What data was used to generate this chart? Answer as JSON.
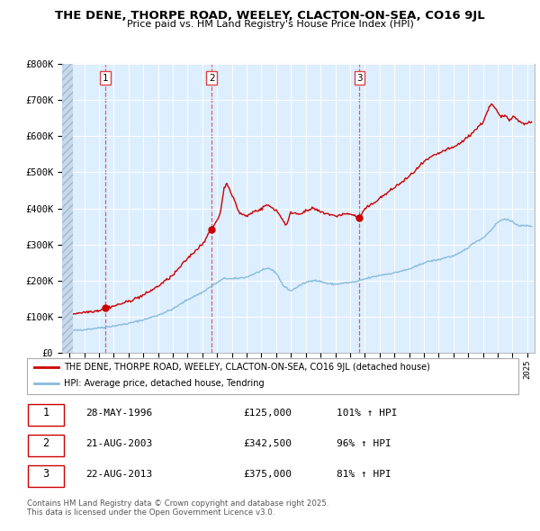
{
  "title": "THE DENE, THORPE ROAD, WEELEY, CLACTON-ON-SEA, CO16 9JL",
  "subtitle": "Price paid vs. HM Land Registry's House Price Index (HPI)",
  "bg_color": "#ddeeff",
  "hatch_bg": "#c8d8ea",
  "red_line_color": "#cc0000",
  "blue_line_color": "#88bbdd",
  "grid_color": "#ffffff",
  "vline1_color": "#dd4444",
  "vline2_color": "#dd4444",
  "vline3_color": "#dd4444",
  "sale_markers": [
    {
      "date_year": 1996.41,
      "price": 125000,
      "label": "1"
    },
    {
      "date_year": 2003.64,
      "price": 342500,
      "label": "2"
    },
    {
      "date_year": 2013.64,
      "price": 375000,
      "label": "3"
    }
  ],
  "legend_entries": [
    {
      "label": "THE DENE, THORPE ROAD, WEELEY, CLACTON-ON-SEA, CO16 9JL (detached house)",
      "color": "#cc0000"
    },
    {
      "label": "HPI: Average price, detached house, Tendring",
      "color": "#88bbdd"
    }
  ],
  "table_rows": [
    {
      "num": "1",
      "date": "28-MAY-1996",
      "price": "£125,000",
      "hpi": "101% ↑ HPI"
    },
    {
      "num": "2",
      "date": "21-AUG-2003",
      "price": "£342,500",
      "hpi": "96% ↑ HPI"
    },
    {
      "num": "3",
      "date": "22-AUG-2013",
      "price": "£375,000",
      "hpi": "81% ↑ HPI"
    }
  ],
  "footnote": "Contains HM Land Registry data © Crown copyright and database right 2025.\nThis data is licensed under the Open Government Licence v3.0.",
  "ylim": [
    0,
    800000
  ],
  "yticks": [
    0,
    100000,
    200000,
    300000,
    400000,
    500000,
    600000,
    700000,
    800000
  ],
  "ytick_labels": [
    "£0",
    "£100K",
    "£200K",
    "£300K",
    "£400K",
    "£500K",
    "£600K",
    "£700K",
    "£800K"
  ]
}
